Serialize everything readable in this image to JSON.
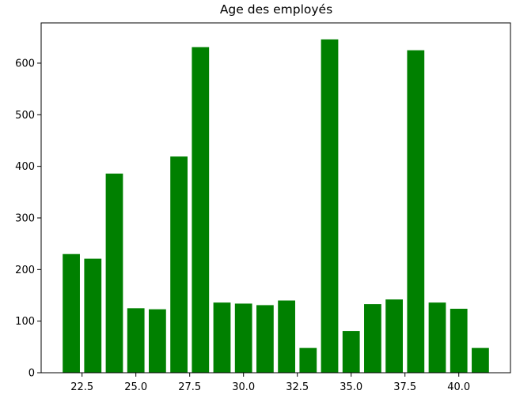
{
  "chart_data": {
    "type": "bar",
    "title": "Age des employés",
    "xlabel": "",
    "ylabel": "",
    "bar_color": "#008000",
    "x": [
      22,
      23,
      24,
      25,
      26,
      27,
      28,
      29,
      30,
      31,
      32,
      33,
      34,
      35,
      36,
      37,
      38,
      39,
      40,
      41
    ],
    "values": [
      230,
      221,
      386,
      125,
      123,
      419,
      631,
      136,
      134,
      131,
      140,
      48,
      646,
      81,
      133,
      142,
      625,
      136,
      124,
      48
    ],
    "xlim": [
      20.6,
      42.4
    ],
    "ylim": [
      0,
      678
    ],
    "x_ticks": [
      22.5,
      25.0,
      27.5,
      30.0,
      32.5,
      35.0,
      37.5,
      40.0
    ],
    "x_tick_labels": [
      "22.5",
      "25.0",
      "27.5",
      "30.0",
      "32.5",
      "35.0",
      "37.5",
      "40.0"
    ],
    "y_ticks": [
      0,
      100,
      200,
      300,
      400,
      500,
      600
    ],
    "y_tick_labels": [
      "0",
      "100",
      "200",
      "300",
      "400",
      "500",
      "600"
    ],
    "grid": false,
    "legend": "none"
  }
}
